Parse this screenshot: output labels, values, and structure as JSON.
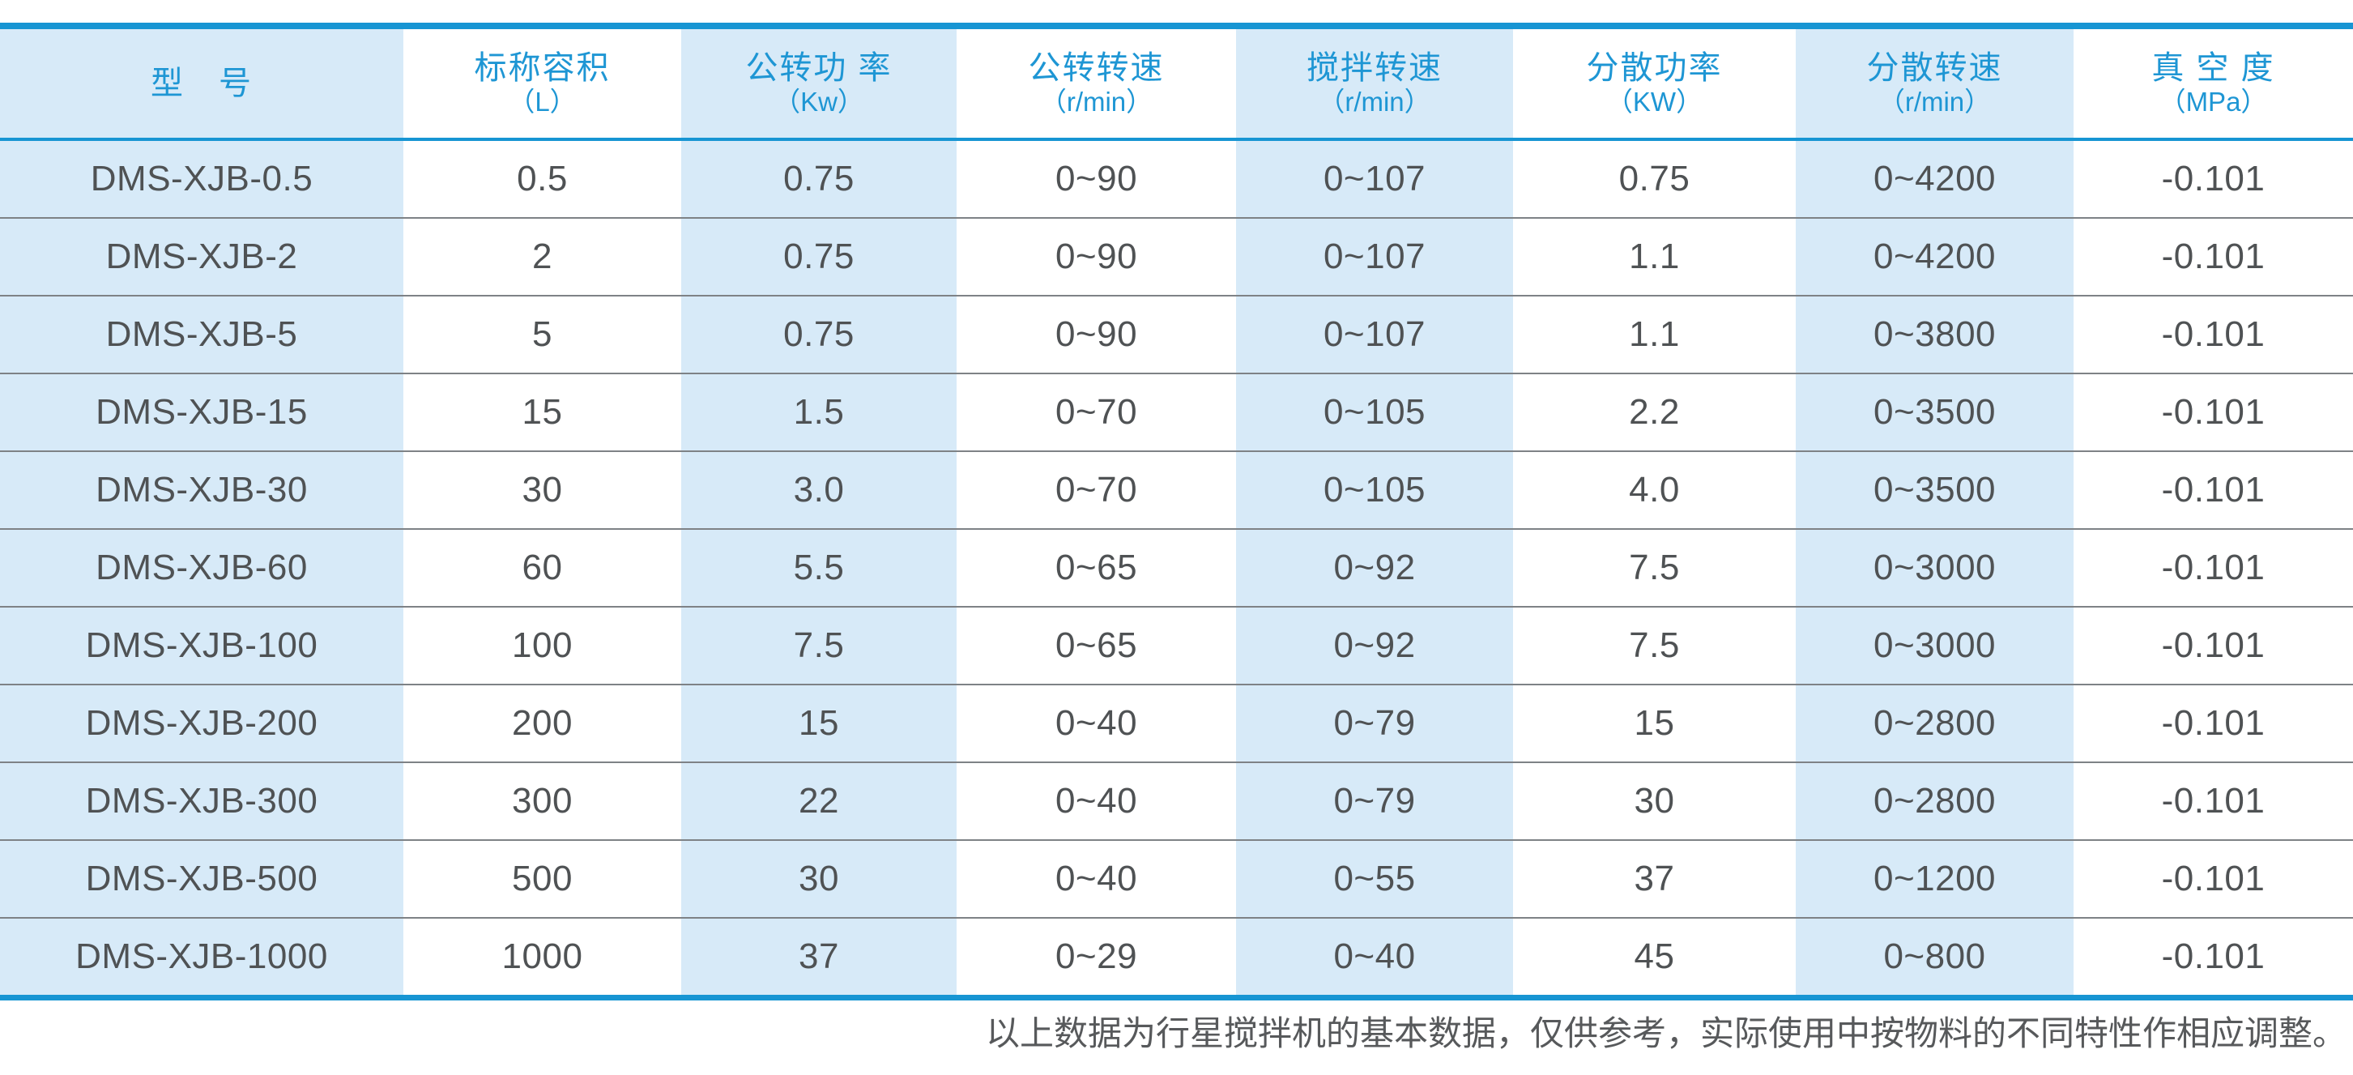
{
  "colors": {
    "accent_blue": "#1795d3",
    "header_text_blue": "#1e96d4",
    "cell_shade_blue": "#d7eaf8",
    "body_text": "#4f5254",
    "row_separator": "#7e8286",
    "footer_text": "#57595b"
  },
  "table": {
    "columns": [
      {
        "title": "型　号",
        "unit": ""
      },
      {
        "title": "标称容积",
        "unit": "（L）"
      },
      {
        "title": "公转功 率",
        "unit": "（Kw）"
      },
      {
        "title": "公转转速",
        "unit": "（r/min）"
      },
      {
        "title": "搅拌转速",
        "unit": "（r/min）"
      },
      {
        "title": "分散功率",
        "unit": "（KW）"
      },
      {
        "title": "分散转速",
        "unit": "（r/min）"
      },
      {
        "title": "真 空 度",
        "unit": "（MPa）"
      }
    ],
    "rows": [
      [
        "DMS-XJB-0.5",
        "0.5",
        "0.75",
        "0~90",
        "0~107",
        "0.75",
        "0~4200",
        "-0.101"
      ],
      [
        "DMS-XJB-2",
        "2",
        "0.75",
        "0~90",
        "0~107",
        "1.1",
        "0~4200",
        "-0.101"
      ],
      [
        "DMS-XJB-5",
        "5",
        "0.75",
        "0~90",
        "0~107",
        "1.1",
        "0~3800",
        "-0.101"
      ],
      [
        "DMS-XJB-15",
        "15",
        "1.5",
        "0~70",
        "0~105",
        "2.2",
        "0~3500",
        "-0.101"
      ],
      [
        "DMS-XJB-30",
        "30",
        "3.0",
        "0~70",
        "0~105",
        "4.0",
        "0~3500",
        "-0.101"
      ],
      [
        "DMS-XJB-60",
        "60",
        "5.5",
        "0~65",
        "0~92",
        "7.5",
        "0~3000",
        "-0.101"
      ],
      [
        "DMS-XJB-100",
        "100",
        "7.5",
        "0~65",
        "0~92",
        "7.5",
        "0~3000",
        "-0.101"
      ],
      [
        "DMS-XJB-200",
        "200",
        "15",
        "0~40",
        "0~79",
        "15",
        "0~2800",
        "-0.101"
      ],
      [
        "DMS-XJB-300",
        "300",
        "22",
        "0~40",
        "0~79",
        "30",
        "0~2800",
        "-0.101"
      ],
      [
        "DMS-XJB-500",
        "500",
        "30",
        "0~40",
        "0~55",
        "37",
        "0~1200",
        "-0.101"
      ],
      [
        "DMS-XJB-1000",
        "1000",
        "37",
        "0~29",
        "0~40",
        "45",
        "0~800",
        "-0.101"
      ]
    ]
  },
  "footer": {
    "note": "以上数据为行星搅拌机的基本数据，仅供参考，实际使用中按物料的不同特性作相应调整。"
  }
}
